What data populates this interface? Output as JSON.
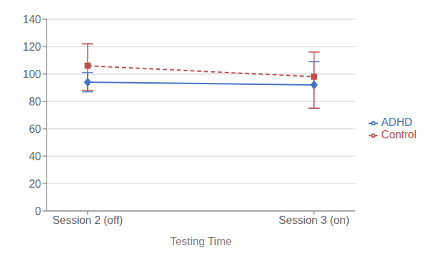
{
  "chart_data": {
    "type": "line",
    "x_label": "Testing Time",
    "categories": [
      "Session 2 (off)",
      "Session 3 (on)"
    ],
    "series": [
      {
        "name": "ADHD",
        "color": "#4472C4",
        "marker": "diamond",
        "line_style": "solid",
        "values": [
          94,
          92
        ],
        "errors_low": [
          7,
          17
        ],
        "errors_high": [
          7,
          17
        ]
      },
      {
        "name": "Control",
        "color": "#C0504D",
        "marker": "square",
        "line_style": "dashed",
        "values": [
          106,
          98
        ],
        "errors_low": [
          18,
          23
        ],
        "errors_high": [
          16,
          18
        ]
      }
    ],
    "ylim": [
      0,
      140
    ],
    "yticks": [
      0,
      20,
      40,
      60,
      80,
      100,
      120,
      140
    ],
    "grid": true,
    "legend": "right"
  }
}
